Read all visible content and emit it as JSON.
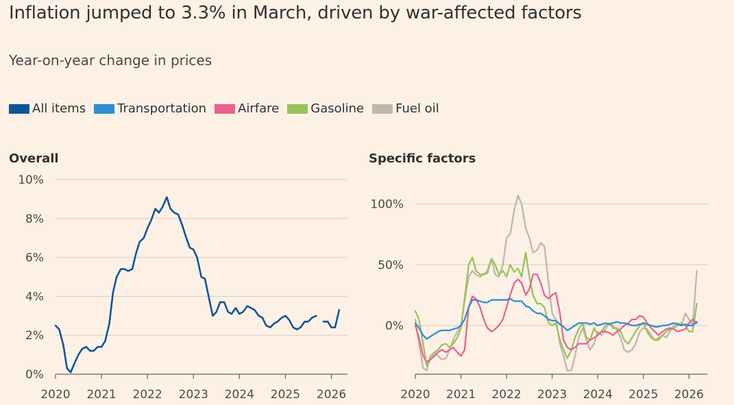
{
  "title": "Inflation jumped to 3.3% in March, driven by war-affected factors",
  "subtitle": "Year-on-year change in prices",
  "legend": [
    {
      "label": "All items",
      "color": "#0f5499"
    },
    {
      "label": "Transportation",
      "color": "#2d8fd4"
    },
    {
      "label": "Airfare",
      "color": "#e9628e"
    },
    {
      "label": "Gasoline",
      "color": "#96c45b"
    },
    {
      "label": "Fuel oil",
      "color": "#bfb6ae"
    }
  ],
  "chart_data": [
    {
      "type": "line",
      "title": "Overall",
      "xlabel": "",
      "ylabel": "",
      "xlim": [
        2020,
        2026.35
      ],
      "ylim": [
        0,
        10
      ],
      "yticks": [
        0,
        2,
        4,
        6,
        8,
        10
      ],
      "ytick_labels": [
        "0%",
        "2%",
        "4%",
        "6%",
        "8%",
        "10%"
      ],
      "xticks": [
        2020,
        2021,
        2022,
        2023,
        2024,
        2025,
        2026
      ],
      "xtick_labels": [
        "2020",
        "2021",
        "2022",
        "2023",
        "2024",
        "2025",
        "2026"
      ],
      "grid": true,
      "series": [
        {
          "name": "All items",
          "color": "#0f5499",
          "x": [
            2020.0,
            2020.08,
            2020.17,
            2020.25,
            2020.33,
            2020.42,
            2020.5,
            2020.58,
            2020.67,
            2020.75,
            2020.83,
            2020.92,
            2021.0,
            2021.08,
            2021.17,
            2021.25,
            2021.33,
            2021.42,
            2021.5,
            2021.58,
            2021.67,
            2021.75,
            2021.83,
            2021.92,
            2022.0,
            2022.08,
            2022.17,
            2022.25,
            2022.33,
            2022.42,
            2022.5,
            2022.58,
            2022.67,
            2022.75,
            2022.83,
            2022.92,
            2023.0,
            2023.08,
            2023.17,
            2023.25,
            2023.33,
            2023.42,
            2023.5,
            2023.58,
            2023.67,
            2023.75,
            2023.83,
            2023.92,
            2024.0,
            2024.08,
            2024.17,
            2024.25,
            2024.33,
            2024.42,
            2024.5,
            2024.58,
            2024.67,
            2024.75,
            2024.83,
            2024.92,
            2025.0,
            2025.08,
            2025.17,
            2025.25,
            2025.33,
            2025.42,
            2025.5,
            2025.58,
            2025.67,
            null,
            2025.83,
            2025.92,
            2026.0,
            2026.08,
            2026.17
          ],
          "values": [
            2.5,
            2.3,
            1.5,
            0.3,
            0.1,
            0.6,
            1.0,
            1.3,
            1.4,
            1.2,
            1.2,
            1.4,
            1.4,
            1.7,
            2.6,
            4.2,
            5.0,
            5.4,
            5.4,
            5.3,
            5.4,
            6.2,
            6.8,
            7.0,
            7.5,
            7.9,
            8.5,
            8.3,
            8.6,
            9.1,
            8.5,
            8.3,
            8.2,
            7.7,
            7.1,
            6.5,
            6.4,
            6.0,
            5.0,
            4.9,
            4.0,
            3.0,
            3.2,
            3.7,
            3.7,
            3.2,
            3.1,
            3.4,
            3.1,
            3.2,
            3.5,
            3.4,
            3.3,
            3.0,
            2.9,
            2.5,
            2.4,
            2.6,
            2.7,
            2.9,
            3.0,
            2.8,
            2.4,
            2.3,
            2.4,
            2.7,
            2.7,
            2.9,
            3.0,
            null,
            2.7,
            2.7,
            2.4,
            2.4,
            3.3
          ]
        }
      ]
    },
    {
      "type": "line",
      "title": "Specific factors",
      "xlabel": "",
      "ylabel": "",
      "xlim": [
        2020,
        2026.4
      ],
      "ylim": [
        -40,
        120
      ],
      "yticks": [
        0,
        50,
        100
      ],
      "ytick_labels": [
        "0%",
        "50%",
        "100%"
      ],
      "xticks": [
        2020,
        2021,
        2022,
        2023,
        2024,
        2025,
        2026
      ],
      "xtick_labels": [
        "2020",
        "2021",
        "2022",
        "2023",
        "2024",
        "2025",
        "2026"
      ],
      "grid": true,
      "series": [
        {
          "name": "Fuel oil",
          "color": "#bfb6ae",
          "x": [
            2020.0,
            2020.08,
            2020.17,
            2020.25,
            2020.33,
            2020.42,
            2020.5,
            2020.58,
            2020.67,
            2020.75,
            2020.83,
            2020.92,
            2021.0,
            2021.08,
            2021.17,
            2021.25,
            2021.33,
            2021.42,
            2021.5,
            2021.58,
            2021.67,
            2021.75,
            2021.83,
            2021.92,
            2022.0,
            2022.08,
            2022.17,
            2022.25,
            2022.33,
            2022.42,
            2022.5,
            2022.58,
            2022.67,
            2022.75,
            2022.83,
            2022.92,
            2023.0,
            2023.08,
            2023.17,
            2023.25,
            2023.33,
            2023.42,
            2023.5,
            2023.58,
            2023.67,
            2023.75,
            2023.83,
            2023.92,
            2024.0,
            2024.08,
            2024.17,
            2024.25,
            2024.33,
            2024.42,
            2024.5,
            2024.58,
            2024.67,
            2024.75,
            2024.83,
            2024.92,
            2025.0,
            2025.08,
            2025.17,
            2025.25,
            2025.33,
            2025.42,
            2025.5,
            2025.58,
            2025.67,
            2025.75,
            2025.83,
            2025.92,
            2026.0,
            2026.08,
            2026.17
          ],
          "values": [
            5,
            -15,
            -35,
            -37,
            -25,
            -22,
            -25,
            -28,
            -27,
            -20,
            -12,
            -5,
            0,
            20,
            40,
            45,
            42,
            40,
            42,
            45,
            55,
            42,
            40,
            50,
            72,
            75,
            95,
            107,
            100,
            80,
            72,
            60,
            62,
            68,
            65,
            35,
            10,
            5,
            -15,
            -25,
            -37,
            -37,
            -25,
            -10,
            -2,
            -12,
            -20,
            -15,
            -5,
            -8,
            -3,
            2,
            0,
            -4,
            -10,
            -20,
            -22,
            -20,
            -15,
            -5,
            -2,
            -3,
            -8,
            -12,
            -10,
            -8,
            -10,
            -5,
            0,
            2,
            0,
            10,
            5,
            0,
            45
          ]
        },
        {
          "name": "Gasoline",
          "color": "#96c45b",
          "x": [
            2020.0,
            2020.08,
            2020.17,
            2020.25,
            2020.33,
            2020.42,
            2020.5,
            2020.58,
            2020.67,
            2020.75,
            2020.83,
            2020.92,
            2021.0,
            2021.08,
            2021.17,
            2021.25,
            2021.33,
            2021.42,
            2021.5,
            2021.58,
            2021.67,
            2021.75,
            2021.83,
            2021.92,
            2022.0,
            2022.08,
            2022.17,
            2022.25,
            2022.33,
            2022.42,
            2022.5,
            2022.58,
            2022.67,
            2022.75,
            2022.83,
            2022.92,
            2023.0,
            2023.08,
            2023.17,
            2023.25,
            2023.33,
            2023.42,
            2023.5,
            2023.58,
            2023.67,
            2023.75,
            2023.83,
            2023.92,
            2024.0,
            2024.08,
            2024.17,
            2024.25,
            2024.33,
            2024.42,
            2024.5,
            2024.58,
            2024.67,
            2024.75,
            2024.83,
            2024.92,
            2025.0,
            2025.08,
            2025.17,
            2025.25,
            2025.33,
            2025.42,
            2025.5,
            2025.58,
            2025.67,
            2025.75,
            2025.83,
            2025.92,
            2026.0,
            2026.08,
            2026.17
          ],
          "values": [
            12,
            5,
            -15,
            -33,
            -28,
            -22,
            -20,
            -16,
            -15,
            -18,
            -15,
            -10,
            -2,
            22,
            50,
            56,
            45,
            42,
            42,
            43,
            55,
            50,
            42,
            45,
            40,
            50,
            44,
            47,
            40,
            60,
            40,
            25,
            18,
            18,
            15,
            2,
            0,
            2,
            -12,
            -20,
            -27,
            -20,
            -10,
            -3,
            2,
            -10,
            -12,
            -2,
            -8,
            -5,
            0,
            2,
            -2,
            -2,
            -5,
            -12,
            -15,
            -10,
            -5,
            0,
            2,
            -5,
            -10,
            -12,
            -12,
            -8,
            -5,
            -3,
            -2,
            0,
            2,
            0,
            -5,
            -5,
            18
          ]
        },
        {
          "name": "Airfare",
          "color": "#e9628e",
          "x": [
            2020.0,
            2020.08,
            2020.17,
            2020.25,
            2020.33,
            2020.42,
            2020.5,
            2020.58,
            2020.67,
            2020.75,
            2020.83,
            2020.92,
            2021.0,
            2021.08,
            2021.17,
            2021.25,
            2021.33,
            2021.42,
            2021.5,
            2021.58,
            2021.67,
            2021.75,
            2021.83,
            2021.92,
            2022.0,
            2022.08,
            2022.17,
            2022.25,
            2022.33,
            2022.42,
            2022.5,
            2022.58,
            2022.67,
            2022.75,
            2022.83,
            2022.92,
            2023.0,
            2023.08,
            2023.17,
            2023.25,
            2023.33,
            2023.42,
            2023.5,
            2023.58,
            2023.67,
            2023.75,
            2023.83,
            2023.92,
            2024.0,
            2024.08,
            2024.17,
            2024.25,
            2024.33,
            2024.42,
            2024.5,
            2024.58,
            2024.67,
            2024.75,
            2024.83,
            2024.92,
            2025.0,
            2025.08,
            2025.17,
            2025.25,
            2025.33,
            2025.42,
            2025.5,
            2025.58,
            2025.67,
            2025.75,
            2025.83,
            2025.92,
            2026.0,
            2026.08,
            2026.17
          ],
          "values": [
            0,
            -10,
            -25,
            -30,
            -28,
            -25,
            -22,
            -20,
            -22,
            -20,
            -18,
            -22,
            -25,
            -20,
            15,
            24,
            22,
            15,
            5,
            -2,
            -5,
            -3,
            0,
            5,
            15,
            25,
            35,
            38,
            35,
            25,
            30,
            42,
            42,
            35,
            25,
            22,
            25,
            27,
            10,
            -12,
            -18,
            -20,
            -18,
            -15,
            -15,
            -15,
            -12,
            -10,
            -8,
            -5,
            -5,
            -6,
            -8,
            -5,
            -3,
            0,
            2,
            5,
            5,
            8,
            7,
            2,
            -2,
            -5,
            -8,
            -5,
            -3,
            -2,
            -3,
            -5,
            -4,
            -3,
            2,
            5,
            2
          ]
        },
        {
          "name": "Transportation",
          "color": "#2d8fd4",
          "x": [
            2020.0,
            2020.08,
            2020.17,
            2020.25,
            2020.33,
            2020.42,
            2020.5,
            2020.58,
            2020.67,
            2020.75,
            2020.83,
            2020.92,
            2021.0,
            2021.08,
            2021.17,
            2021.25,
            2021.33,
            2021.42,
            2021.5,
            2021.58,
            2021.67,
            2021.75,
            2021.83,
            2021.92,
            2022.0,
            2022.08,
            2022.17,
            2022.25,
            2022.33,
            2022.42,
            2022.5,
            2022.58,
            2022.67,
            2022.75,
            2022.83,
            2022.92,
            2023.0,
            2023.08,
            2023.17,
            2023.25,
            2023.33,
            2023.42,
            2023.5,
            2023.58,
            2023.67,
            2023.75,
            2023.83,
            2023.92,
            2024.0,
            2024.08,
            2024.17,
            2024.25,
            2024.33,
            2024.42,
            2024.5,
            2024.58,
            2024.67,
            2024.75,
            2024.83,
            2024.92,
            2025.0,
            2025.08,
            2025.17,
            2025.25,
            2025.33,
            2025.42,
            2025.5,
            2025.58,
            2025.67,
            2025.75,
            2025.83,
            2025.92,
            2026.0,
            2026.08,
            2026.17
          ],
          "values": [
            2,
            -2,
            -8,
            -11,
            -9,
            -7,
            -5,
            -4,
            -4,
            -4,
            -3,
            -2,
            0,
            5,
            15,
            21,
            21,
            20,
            19,
            19,
            21,
            21,
            21,
            21,
            21,
            22,
            20,
            20,
            20,
            16,
            15,
            12,
            10,
            10,
            8,
            5,
            4,
            4,
            1,
            -1,
            -4,
            -2,
            0,
            2,
            2,
            2,
            1,
            2,
            0,
            1,
            2,
            1,
            2,
            3,
            2,
            2,
            1,
            0,
            0,
            1,
            2,
            1,
            0,
            -1,
            -1,
            0,
            0,
            1,
            2,
            1,
            0,
            1,
            0,
            0,
            3
          ]
        }
      ]
    }
  ]
}
